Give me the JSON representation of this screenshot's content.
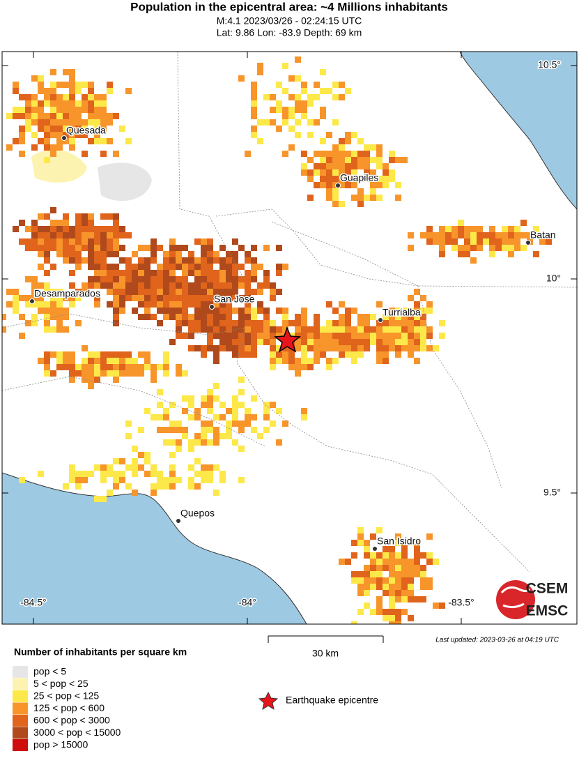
{
  "header": {
    "title": "Population in the epicentral area: ~4 Millions inhabitants",
    "lines": [
      "M:4.1 2023/03/26 - 02:24:15 UTC",
      "Lat: 9.86 Lon: -83.9 Depth: 69 km"
    ]
  },
  "map": {
    "lat_labels": [
      "10.5°",
      "10°",
      "9.5°"
    ],
    "lon_labels": [
      "-84.5°",
      "-84°",
      "-83.5°"
    ],
    "cities": [
      "Quesada",
      "Guapiles",
      "Batan",
      "Desamparados",
      "San Jose",
      "Turrialba",
      "Quepos",
      "San Isidro"
    ],
    "scale": "30 km",
    "updated": "Last updated: 2023-03-26 at 04:19 UTC",
    "logo": [
      "CSEM",
      "EMSC"
    ]
  },
  "legend": {
    "title": "Number of inhabitants per square km",
    "items": [
      {
        "label": "pop < 5",
        "color": "#e6e6e6"
      },
      {
        "label": "5 < pop < 25",
        "color": "#fdf3b0"
      },
      {
        "label": "25 < pop < 125",
        "color": "#fde84a"
      },
      {
        "label": "125 < pop < 600",
        "color": "#f7952b"
      },
      {
        "label": "600 < pop < 3000",
        "color": "#e0641c"
      },
      {
        "label": "3000 < pop < 15000",
        "color": "#b04a1c"
      },
      {
        "label": "pop > 15000",
        "color": "#d00d0d"
      }
    ],
    "epicentre": "Earthquake epicentre"
  }
}
